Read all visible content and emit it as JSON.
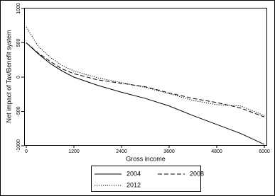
{
  "chart_data": {
    "type": "line",
    "x_label": "Gross income",
    "y_label": "Net impact of Tax/Benefit system",
    "x": [
      0,
      300,
      600,
      900,
      1200,
      1800,
      2400,
      3000,
      3600,
      4200,
      4800,
      5400,
      6000
    ],
    "series": [
      {
        "name": "2004",
        "color": "#000000",
        "dash": "solid",
        "values": [
          500,
          340,
          200,
          90,
          0,
          -120,
          -220,
          -310,
          -420,
          -560,
          -690,
          -820,
          -980
        ]
      },
      {
        "name": "2008",
        "color": "#000000",
        "dash": "dashed",
        "values": [
          500,
          350,
          230,
          120,
          50,
          -40,
          -90,
          -140,
          -230,
          -310,
          -370,
          -450,
          -580
        ]
      },
      {
        "name": "2012",
        "color": "#000000",
        "dash": "dotted",
        "values": [
          730,
          450,
          290,
          170,
          90,
          -10,
          -80,
          -150,
          -240,
          -340,
          -400,
          -420,
          -560
        ]
      }
    ],
    "xlim": [
      0,
      6000
    ],
    "xticks": [
      0,
      1200,
      2400,
      3600,
      4800,
      6000
    ],
    "ylim": [
      -1000,
      1000
    ],
    "yticks": [
      -1000,
      -500,
      0,
      500,
      1000
    ]
  }
}
